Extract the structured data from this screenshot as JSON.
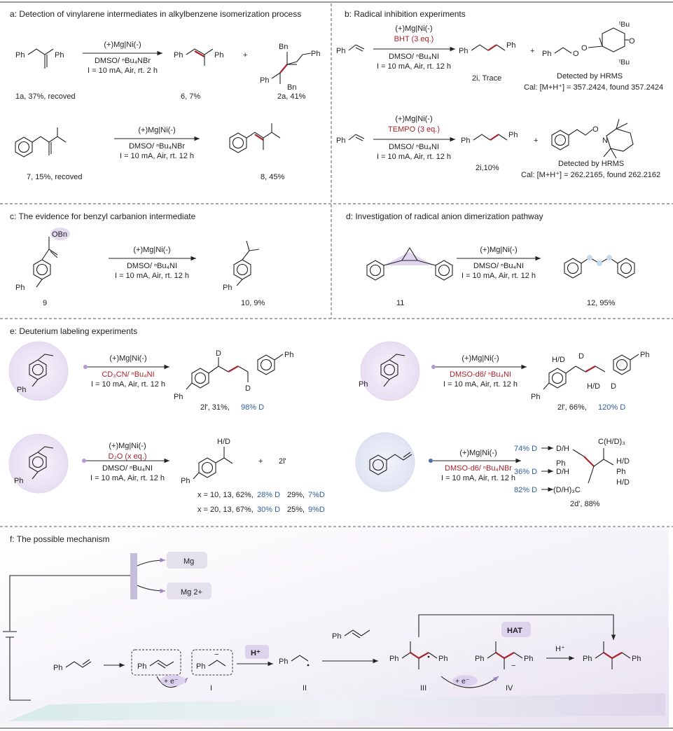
{
  "colors": {
    "accent_red": "#a8232a",
    "accent_blue": "#2e5f9b",
    "purple": "#b29bd3",
    "panel_bg": "#ede8f4"
  },
  "panels": {
    "a": {
      "title": "a: Detection of vinylarene intermediates in alkylbenzene isomerization process",
      "cond1": "(+)Mg|Ni(-)",
      "cond2": "DMSO/ ⁿBu₄NBr",
      "cond3": "I = 10 mA, Air, rt. 2 h",
      "lab_1a": "1a, 37%, recoved",
      "lab_6": "6, 7%",
      "lab_2a": "2a, 41%",
      "plus": "+",
      "r2_cond1": "(+)Mg|Ni(-)",
      "r2_cond2": "DMSO/ ⁿBu₄NBr",
      "r2_cond3": "I = 10 mA, Air, rt. 12 h",
      "lab_7": "7, 15%, recoved",
      "lab_8": "8, 45%"
    },
    "b": {
      "title": "b: Radical inhibition experiments",
      "cond1": "(+)Mg|Ni(-)",
      "add1": "BHT (3 eq.)",
      "cond2": "DMSO/ ⁿBu₄NI",
      "cond3": "I = 10 mA, Air, rt. 12 h",
      "lab_2i_1": "2i, Trace",
      "det1": "Detected by HRMS",
      "cal1": "Cal: [M+H⁺] = 357.2424, found 357.2424",
      "add2": "TEMPO (3 eq.)",
      "lab_2i_2": "2i,10%",
      "det2": "Detected by HRMS",
      "cal2": "Cal: [M+H⁺] = 262.2165, found 262.2162"
    },
    "c": {
      "title": "c: The  evidence for benzyl carbanion intermediate",
      "cond1": "(+)Mg|Ni(-)",
      "cond2": "DMSO/ ⁿBu₄NI",
      "cond3": "I = 10 mA, Air, rt. 12 h",
      "lab_9": "9",
      "lab_10": "10, 9%",
      "obn": "OBn"
    },
    "d": {
      "title": "d: Investigation of radical anion dimerization pathway",
      "cond1": "(+)Mg|Ni(-)",
      "cond2": "DMSO/ ⁿBu₄NI",
      "cond3": "I = 10 mA, Air, rt. 12 h",
      "lab_11": "11",
      "lab_12": "12, 95%"
    },
    "e": {
      "title": "e: Deuterium labeling experiments",
      "cond1": "(+)Mg|Ni(-)",
      "solv1": "CD₃CN/ ⁿBu₄NI",
      "cond3": "I = 10 mA, Air, rt. 12 h",
      "lab_2l_1": "2l', 31%, ",
      "d1": "98% D",
      "solv2": "DMSO-d6/ ⁿBu₄NI",
      "lab_2l_2": "2l', 66%, ",
      "d2": "120% D",
      "solv3": "D₂O (x eq.)",
      "cond3b": "DMSO/ ⁿBu₄NI",
      "lab_2l_3": "2l'",
      "row1": "x = 10, 13, 62%, ",
      "row1d": "28% D",
      "row1b": "29%, ",
      "row1bd": "7%D",
      "row2": "x = 20, 13, 67%, ",
      "row2d": "30% D",
      "row2b": "25%, ",
      "row2bd": "9%D",
      "solv4": "DMSO-d6/ ⁿBu₄NBr",
      "p74": "74% D",
      "p36": "36% D",
      "p82": "82% D",
      "lab_2d": "2d', 88%"
    },
    "f": {
      "title": "f: The possible mechanism",
      "mg": "Mg",
      "mg2": "Mg 2+",
      "I": "I",
      "II": "II",
      "III": "III",
      "IV": "IV",
      "hplus": "H⁺",
      "hat": "HAT",
      "eminus": "+ e⁻",
      "hplus2": "H⁺"
    }
  }
}
